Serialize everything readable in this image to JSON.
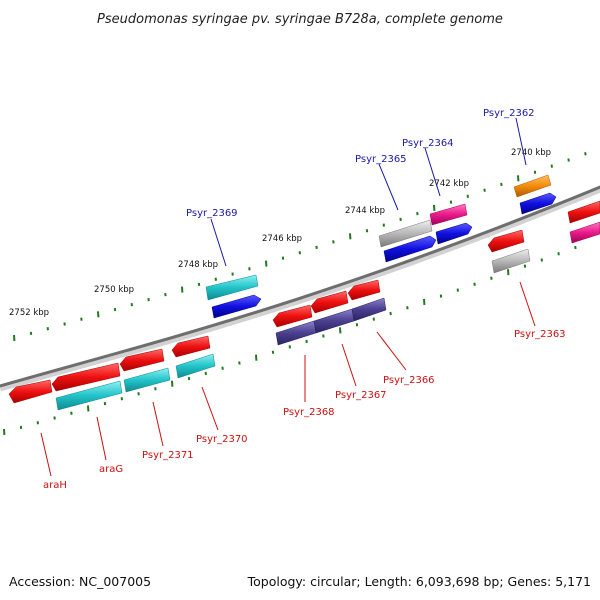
{
  "title": "Pseudomonas syringae pv. syringae B728a, complete genome",
  "footer": {
    "accession": "Accession: NC_007005",
    "stats": "Topology: circular; Length: 6,093,698 bp; Genes: 5,171"
  },
  "ruler_labels": [
    "2740 kbp",
    "2742 kbp",
    "2744 kbp",
    "2746 kbp",
    "2748 kbp",
    "2750 kbp",
    "2752 kbp"
  ],
  "gene_labels": [
    {
      "id": "psyr_2362",
      "text": "Psyr_2362",
      "strand": "forward",
      "color": "#1a1aa8"
    },
    {
      "id": "psyr_2364",
      "text": "Psyr_2364",
      "strand": "forward",
      "color": "#1a1aa8"
    },
    {
      "id": "psyr_2365",
      "text": "Psyr_2365",
      "strand": "forward",
      "color": "#1a1aa8"
    },
    {
      "id": "psyr_2369",
      "text": "Psyr_2369",
      "strand": "forward",
      "color": "#1a1aa8"
    },
    {
      "id": "psyr_2363",
      "text": "Psyr_2363",
      "strand": "reverse",
      "color": "#cc1010"
    },
    {
      "id": "psyr_2366",
      "text": "Psyr_2366",
      "strand": "reverse",
      "color": "#cc1010"
    },
    {
      "id": "psyr_2367",
      "text": "Psyr_2367",
      "strand": "reverse",
      "color": "#cc1010"
    },
    {
      "id": "psyr_2368",
      "text": "Psyr_2368",
      "strand": "reverse",
      "color": "#cc1010"
    },
    {
      "id": "psyr_2370",
      "text": "Psyr_2370",
      "strand": "reverse",
      "color": "#cc1010"
    },
    {
      "id": "psyr_2371",
      "text": "Psyr_2371",
      "strand": "reverse",
      "color": "#cc1010"
    },
    {
      "id": "arag",
      "text": "araG",
      "strand": "reverse",
      "color": "#cc1010"
    },
    {
      "id": "arah",
      "text": "araH",
      "strand": "reverse",
      "color": "#cc1010"
    }
  ],
  "colors": {
    "backbone": "#6e6e6e",
    "tick": "#1f7a1f",
    "cds_red": "#ee1111",
    "cds_cyan": "#22c4c9",
    "cds_blue": "#1010e0",
    "cds_purple": "#4a3f90",
    "cds_gray": "#b8b8b8",
    "cds_pink": "#ea1a8a",
    "cds_orange": "#f28c0c"
  }
}
